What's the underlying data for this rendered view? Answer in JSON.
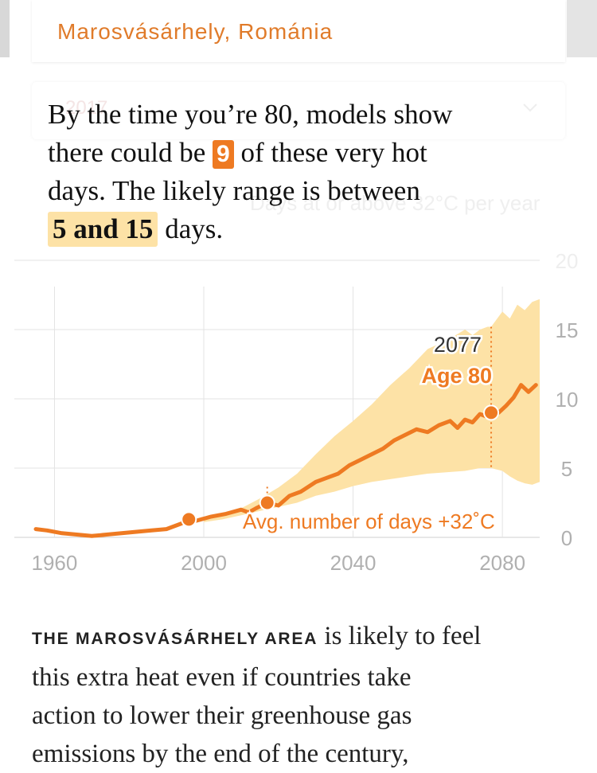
{
  "location": {
    "label": "Marosvásárhely, Románia"
  },
  "year_select": {
    "value": "2017"
  },
  "headline": {
    "part1": "By the time you’re 80, models show",
    "part2a": "there could be",
    "median_days": "9",
    "part2b": "of these very hot",
    "part3": "days. The likely range is between",
    "range": "5 and 15",
    "part4": "days."
  },
  "chart_subtitle": "Days at or above 32°C per year",
  "colors": {
    "accent": "#ee7a22",
    "band": "#fde2a6",
    "highlight": "#fde2a6",
    "label_orange": "#e07b2a"
  },
  "chart_data": {
    "type": "area",
    "title": "",
    "ylabel": "Days at or above 32°C per year",
    "xlabel": "",
    "xlim": [
      1955,
      2090
    ],
    "ylim": [
      0,
      20
    ],
    "x_ticks": [
      "1960",
      "2000",
      "2040",
      "2080"
    ],
    "y_ticks": [
      "0",
      "5",
      "10",
      "15",
      "20"
    ],
    "grid": true,
    "series": [
      {
        "name": "",
        "role": "median",
        "x": [
          1955,
          1958,
          1962,
          1966,
          1970,
          1974,
          1978,
          1982,
          1986,
          1990,
          1994,
          1996,
          1998,
          2002,
          2006,
          2010,
          2012,
          2014,
          2017,
          2020,
          2023,
          2026,
          2030,
          2033,
          2036,
          2039,
          2042,
          2045,
          2048,
          2051,
          2054,
          2057,
          2060,
          2063,
          2066,
          2068,
          2070,
          2072,
          2074,
          2076,
          2077,
          2079,
          2081,
          2083,
          2085,
          2087,
          2089
        ],
        "y": [
          0.6,
          0.5,
          0.3,
          0.2,
          0.1,
          0.2,
          0.3,
          0.4,
          0.5,
          0.6,
          1.0,
          1.3,
          1.2,
          1.5,
          1.7,
          2.0,
          1.8,
          2.1,
          2.5,
          2.3,
          3.0,
          3.3,
          4.0,
          4.3,
          4.6,
          5.2,
          5.6,
          6.0,
          6.4,
          7.0,
          7.4,
          7.8,
          7.6,
          8.1,
          8.4,
          7.9,
          8.5,
          8.3,
          8.9,
          8.7,
          9.0,
          9.0,
          9.5,
          10.1,
          11.0,
          10.5,
          11.0
        ]
      },
      {
        "name": "",
        "role": "likely range",
        "x": [
          2000,
          2005,
          2010,
          2015,
          2020,
          2025,
          2030,
          2035,
          2040,
          2045,
          2050,
          2055,
          2060,
          2065,
          2070,
          2072,
          2074,
          2076,
          2077,
          2080,
          2082,
          2084,
          2086,
          2088,
          2090
        ],
        "low": [
          1.1,
          1.3,
          1.6,
          1.9,
          2.2,
          2.5,
          3.0,
          3.3,
          3.7,
          4.0,
          4.2,
          4.4,
          4.6,
          4.7,
          4.8,
          4.9,
          5.0,
          5.0,
          5.0,
          4.8,
          4.4,
          4.1,
          3.9,
          3.8,
          4.0
        ],
        "high": [
          1.3,
          1.7,
          2.1,
          2.8,
          3.6,
          4.6,
          6.0,
          7.3,
          8.4,
          9.6,
          11.0,
          12.2,
          13.6,
          14.2,
          15.0,
          14.6,
          15.0,
          15.2,
          15.2,
          16.3,
          15.8,
          16.8,
          16.4,
          17.0,
          17.2
        ]
      }
    ],
    "points": [
      {
        "x": 1996,
        "y": 1.3
      },
      {
        "x": 2017,
        "y": 2.5
      },
      {
        "x": 2077,
        "y": 9.0
      }
    ],
    "annotations": {
      "current_label": "Avg. number of days +32˚C",
      "future_year": "2077",
      "future_age": "Age 80"
    }
  },
  "body": {
    "lead": "THE MAROSVÁSÁRHELY AREA",
    "line1": "is likely to feel",
    "line2": "this extra heat even if countries take",
    "line3": "action to lower their greenhouse gas",
    "line4": "emissions by the end of the century,"
  }
}
